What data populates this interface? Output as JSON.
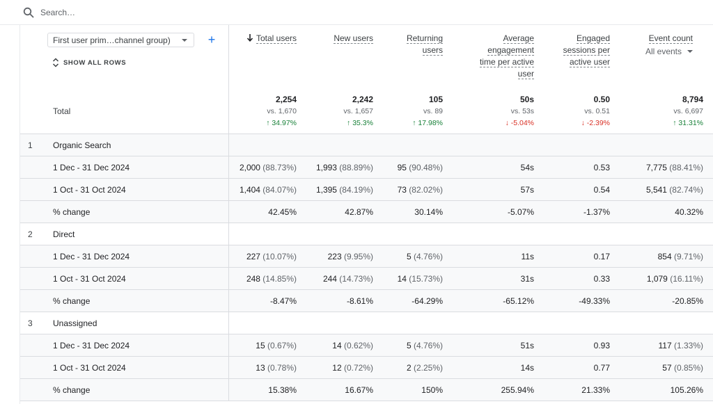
{
  "search": {
    "placeholder": "Search…"
  },
  "dimension": {
    "label": "First user prim…channel group)",
    "add_label": "+",
    "show_all_rows": "SHOW ALL ROWS"
  },
  "metrics": [
    {
      "line1": "Total users",
      "line2": "",
      "line3": "",
      "line4": ""
    },
    {
      "line1": "New users"
    },
    {
      "line1": "Returning",
      "line2": "users"
    },
    {
      "line1": "Average",
      "line2": "engagement",
      "line3": "time per active",
      "line4": "user"
    },
    {
      "line1": "Engaged",
      "line2": "sessions per",
      "line3": "active user"
    },
    {
      "line1": "Event count",
      "sub": "All events"
    }
  ],
  "totals": {
    "label": "Total",
    "values": [
      {
        "v": "2,254",
        "vs": "vs. 1,670",
        "chg": "↑ 34.97%",
        "dir": "up"
      },
      {
        "v": "2,242",
        "vs": "vs. 1,657",
        "chg": "↑ 35.3%",
        "dir": "up"
      },
      {
        "v": "105",
        "vs": "vs. 89",
        "chg": "↑ 17.98%",
        "dir": "up"
      },
      {
        "v": "50s",
        "vs": "vs. 53s",
        "chg": "↓ -5.04%",
        "dir": "down"
      },
      {
        "v": "0.50",
        "vs": "vs. 0.51",
        "chg": "↓ -2.39%",
        "dir": "down"
      },
      {
        "v": "8,794",
        "vs": "vs. 6,697",
        "chg": "↑ 31.31%",
        "dir": "up"
      }
    ]
  },
  "groups": [
    {
      "index": "1",
      "name": "Organic Search",
      "rows": [
        {
          "label": "1 Dec - 31 Dec 2024",
          "cells": [
            [
              "2,000",
              "(88.73%)"
            ],
            [
              "1,993",
              "(88.89%)"
            ],
            [
              "95",
              "(90.48%)"
            ],
            [
              "54s",
              ""
            ],
            [
              "0.53",
              ""
            ],
            [
              "7,775",
              "(88.41%)"
            ]
          ]
        },
        {
          "label": "1 Oct - 31 Oct 2024",
          "cells": [
            [
              "1,404",
              "(84.07%)"
            ],
            [
              "1,395",
              "(84.19%)"
            ],
            [
              "73",
              "(82.02%)"
            ],
            [
              "57s",
              ""
            ],
            [
              "0.54",
              ""
            ],
            [
              "5,541",
              "(82.74%)"
            ]
          ]
        },
        {
          "label": "% change",
          "cells": [
            [
              "42.45%",
              ""
            ],
            [
              "42.87%",
              ""
            ],
            [
              "30.14%",
              ""
            ],
            [
              "-5.07%",
              ""
            ],
            [
              "-1.37%",
              ""
            ],
            [
              "40.32%",
              ""
            ]
          ]
        }
      ]
    },
    {
      "index": "2",
      "name": "Direct",
      "rows": [
        {
          "label": "1 Dec - 31 Dec 2024",
          "cells": [
            [
              "227",
              "(10.07%)"
            ],
            [
              "223",
              "(9.95%)"
            ],
            [
              "5",
              "(4.76%)"
            ],
            [
              "11s",
              ""
            ],
            [
              "0.17",
              ""
            ],
            [
              "854",
              "(9.71%)"
            ]
          ]
        },
        {
          "label": "1 Oct - 31 Oct 2024",
          "cells": [
            [
              "248",
              "(14.85%)"
            ],
            [
              "244",
              "(14.73%)"
            ],
            [
              "14",
              "(15.73%)"
            ],
            [
              "31s",
              ""
            ],
            [
              "0.33",
              ""
            ],
            [
              "1,079",
              "(16.11%)"
            ]
          ]
        },
        {
          "label": "% change",
          "cells": [
            [
              "-8.47%",
              ""
            ],
            [
              "-8.61%",
              ""
            ],
            [
              "-64.29%",
              ""
            ],
            [
              "-65.12%",
              ""
            ],
            [
              "-49.33%",
              ""
            ],
            [
              "-20.85%",
              ""
            ]
          ]
        }
      ]
    },
    {
      "index": "3",
      "name": "Unassigned",
      "rows": [
        {
          "label": "1 Dec - 31 Dec 2024",
          "cells": [
            [
              "15",
              "(0.67%)"
            ],
            [
              "14",
              "(0.62%)"
            ],
            [
              "5",
              "(4.76%)"
            ],
            [
              "51s",
              ""
            ],
            [
              "0.93",
              ""
            ],
            [
              "117",
              "(1.33%)"
            ]
          ]
        },
        {
          "label": "1 Oct - 31 Oct 2024",
          "cells": [
            [
              "13",
              "(0.78%)"
            ],
            [
              "12",
              "(0.72%)"
            ],
            [
              "2",
              "(2.25%)"
            ],
            [
              "14s",
              ""
            ],
            [
              "0.77",
              ""
            ],
            [
              "57",
              "(0.85%)"
            ]
          ]
        },
        {
          "label": "% change",
          "cells": [
            [
              "15.38%",
              ""
            ],
            [
              "16.67%",
              ""
            ],
            [
              "150%",
              ""
            ],
            [
              "255.94%",
              ""
            ],
            [
              "21.33%",
              ""
            ],
            [
              "105.26%",
              ""
            ]
          ]
        }
      ]
    }
  ],
  "colors": {
    "accent": "#1a73e8",
    "up": "#188038",
    "down": "#d93025",
    "row_shade": "#f8f9fa"
  }
}
